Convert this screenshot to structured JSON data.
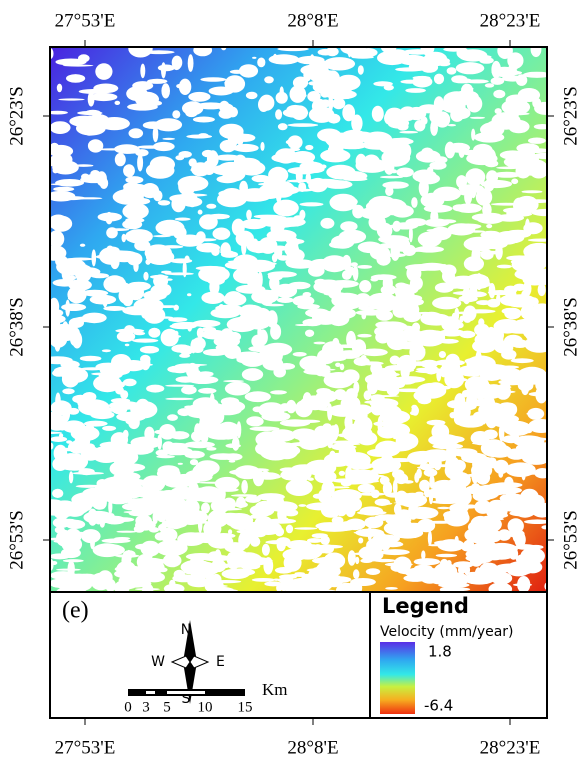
{
  "map": {
    "top_labels": [
      "27°53'E",
      "28°8'E",
      "28°23'E"
    ],
    "bottom_labels": [
      "27°53'E",
      "28°8'E",
      "28°23'E"
    ],
    "left_labels": [
      "26°23'S",
      "26°38'S",
      "26°53'S"
    ],
    "right_labels": [
      "26°23'S",
      "26°38'S",
      "26°53'S"
    ]
  },
  "panel_label": "(e)",
  "compass": {
    "n": "N",
    "s": "S",
    "e": "E",
    "w": "W"
  },
  "scale_bar": {
    "labels": [
      "0",
      "3",
      "5",
      "10",
      "15"
    ],
    "unit": "Km"
  },
  "legend": {
    "title": "Legend",
    "subtitle": "Velocity (mm/year)",
    "max": "1.8",
    "min": "-6.4"
  }
}
